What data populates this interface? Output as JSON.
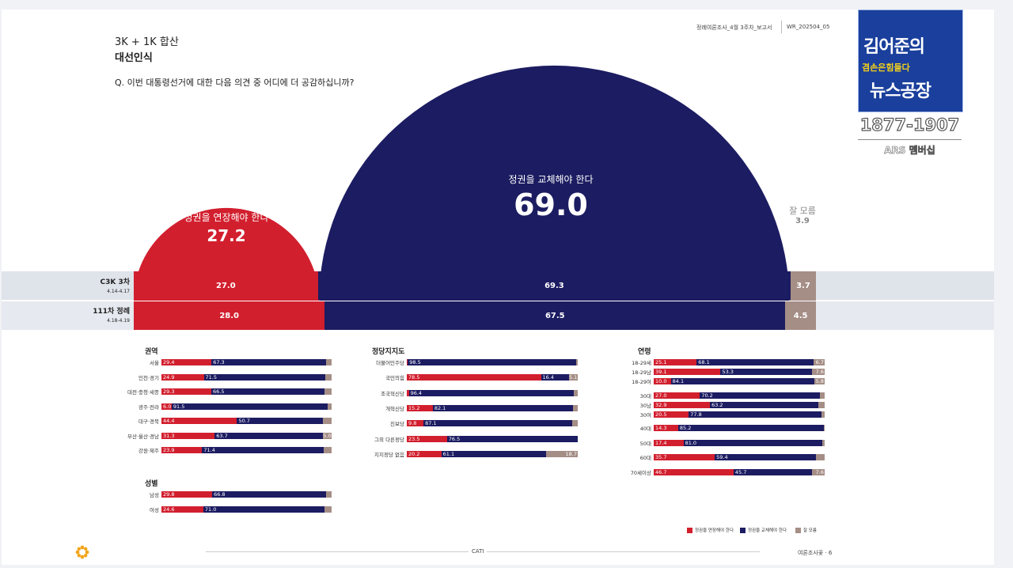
{
  "header": {
    "subtitle": "3K + 1K 합산",
    "title": "대선인식",
    "question": "Q. 이번 대통령선거에 대한 다음 의견 중 어디에 더 공감하십니까?",
    "report_name": "정례여론조사_4월 3주차_보고서",
    "report_code": "WR_202504_05"
  },
  "logo": {
    "line1": "김어준의",
    "line2": "겸손은힘들다",
    "line3": "뉴스공장",
    "range": "1877-1907",
    "caption": "ARS 멤버십"
  },
  "colors": {
    "red": "#d21f2e",
    "navy": "#1c1c62",
    "gray": "#a58e86",
    "band": "#dfe3ea"
  },
  "chart_data": [
    {
      "type": "pie",
      "title": "대선인식",
      "categories": [
        "정권을 연장해야 한다",
        "정권을 교체해야 한다",
        "잘 모름"
      ],
      "values": [
        27.2,
        69.0,
        3.9
      ],
      "labels": [
        "27.2",
        "69.0",
        "3.9"
      ],
      "waves": [
        {
          "name": "C3K 3차",
          "dates": "4.14-4.17",
          "values": [
            27.0,
            69.3,
            3.7
          ],
          "labels": [
            "27.0",
            "69.3",
            "3.7"
          ]
        },
        {
          "name": "111차 정례",
          "dates": "4.18-4.19",
          "values": [
            28.0,
            67.5,
            4.5
          ],
          "labels": [
            "28.0",
            "67.5",
            "4.5"
          ]
        }
      ]
    },
    {
      "type": "bar",
      "title": "권역",
      "categories": [
        "서울",
        "인천·경기",
        "대전·충청·세종",
        "광주·전라",
        "대구·경북",
        "부산·울산·경남",
        "강원·제주"
      ],
      "rows": [
        [
          29.4,
          67.3,
          3.3
        ],
        [
          24.9,
          71.5,
          3.6
        ],
        [
          29.3,
          66.5,
          4.2
        ],
        [
          6.0,
          91.5,
          2.5
        ],
        [
          44.4,
          50.7,
          4.9
        ],
        [
          31.3,
          63.7,
          5.0
        ],
        [
          23.9,
          71.4,
          4.7
        ]
      ],
      "labels": [
        [
          "29.4",
          "67.3",
          ""
        ],
        [
          "24.9",
          "71.5",
          ""
        ],
        [
          "29.3",
          "66.5",
          ""
        ],
        [
          "6.0",
          "91.5",
          ""
        ],
        [
          "44.4",
          "50.7",
          ""
        ],
        [
          "31.3",
          "63.7",
          "5.0"
        ],
        [
          "23.9",
          "71.4",
          ""
        ]
      ]
    },
    {
      "type": "bar",
      "title": "성별",
      "categories": [
        "남성",
        "여성"
      ],
      "rows": [
        [
          29.8,
          66.8,
          3.4
        ],
        [
          24.6,
          71.0,
          4.4
        ]
      ],
      "labels": [
        [
          "29.8",
          "66.8",
          ""
        ],
        [
          "24.6",
          "71.0",
          ""
        ]
      ]
    },
    {
      "type": "bar",
      "title": "정당지지도",
      "categories": [
        "더불어민주당",
        "국민의힘",
        "조국혁신당",
        "개혁신당",
        "진보당",
        "그외 다른정당",
        "지지정당 없음"
      ],
      "rows": [
        [
          0.6,
          98.5,
          0.9
        ],
        [
          78.5,
          16.4,
          5.1
        ],
        [
          1.2,
          96.4,
          2.4
        ],
        [
          15.2,
          82.1,
          2.7
        ],
        [
          9.8,
          87.1,
          3.1
        ],
        [
          23.5,
          76.5,
          0.0
        ],
        [
          20.2,
          61.1,
          18.7
        ]
      ],
      "labels": [
        [
          "",
          "98.5",
          ""
        ],
        [
          "78.5",
          "16.4",
          "5.1"
        ],
        [
          "",
          "96.4",
          ""
        ],
        [
          "15.2",
          "82.1",
          ""
        ],
        [
          "9.8",
          "87.1",
          ""
        ],
        [
          "23.5",
          "76.5",
          ""
        ],
        [
          "20.2",
          "61.1",
          "18.7"
        ]
      ]
    },
    {
      "type": "bar",
      "title": "연령",
      "categories": [
        "18-29세",
        "18-29남",
        "18-29여",
        "30대",
        "30남",
        "30여",
        "40대",
        "50대",
        "60대",
        "70세이상"
      ],
      "rows": [
        [
          25.1,
          68.1,
          6.7
        ],
        [
          39.1,
          53.3,
          7.6
        ],
        [
          10.0,
          84.1,
          5.8
        ],
        [
          27.0,
          70.2,
          2.8
        ],
        [
          32.9,
          63.2,
          3.9
        ],
        [
          20.5,
          77.8,
          1.7
        ],
        [
          14.3,
          85.2,
          0.5
        ],
        [
          17.4,
          81.0,
          1.6
        ],
        [
          35.7,
          59.4,
          4.9
        ],
        [
          46.7,
          45.7,
          7.6
        ]
      ],
      "labels": [
        [
          "25.1",
          "68.1",
          "6.7"
        ],
        [
          "39.1",
          "53.3",
          "7.6"
        ],
        [
          "10.0",
          "84.1",
          "5.8"
        ],
        [
          "27.0",
          "70.2",
          ""
        ],
        [
          "32.9",
          "63.2",
          ""
        ],
        [
          "20.5",
          "77.8",
          ""
        ],
        [
          "14.3",
          "85.2",
          ""
        ],
        [
          "17.4",
          "81.0",
          ""
        ],
        [
          "35.7",
          "59.4",
          ""
        ],
        [
          "46.7",
          "45.7",
          "7.6"
        ]
      ]
    }
  ],
  "legend": [
    "정권을 연장해야 한다",
    "정권을 교체해야 한다",
    "잘 모름"
  ],
  "footer": {
    "center": "CATI",
    "right": "여론조사꽃 · 6"
  }
}
